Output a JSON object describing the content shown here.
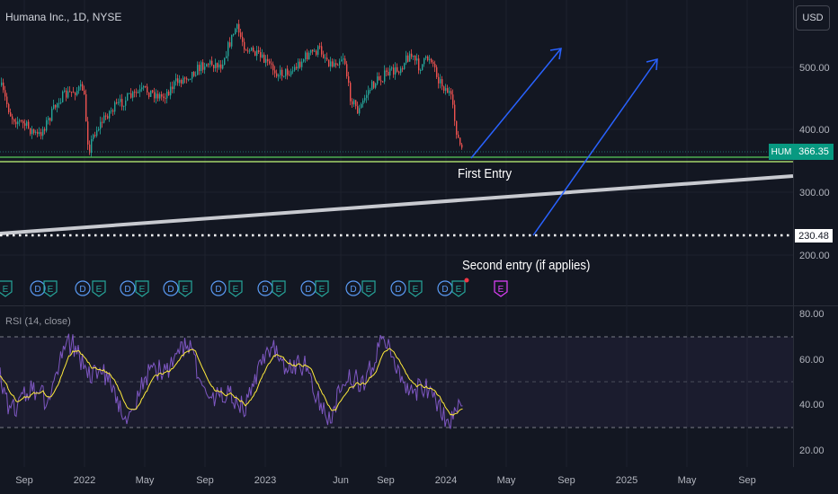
{
  "header": {
    "title": "Humana Inc., 1D, NYSE",
    "currency_button": "USD"
  },
  "price_axis": {
    "ticks": [
      "500.00",
      "400.00",
      "300.00",
      "200.00"
    ],
    "current_symbol": "HUM",
    "current_price": "366.35",
    "level_label": "230.48"
  },
  "rsi": {
    "label": "RSI (14, close)",
    "ticks": [
      "80.00",
      "60.00",
      "40.00",
      "20.00"
    ]
  },
  "time_axis": {
    "ticks": [
      "Sep",
      "2022",
      "May",
      "Sep",
      "2023",
      "Jun",
      "Sep",
      "2024",
      "May",
      "Sep",
      "2025",
      "May",
      "Sep"
    ]
  },
  "annotations": {
    "first_entry": "First Entry",
    "second_entry": "Second entry (if applies)"
  },
  "events": {
    "dividend_letter": "D",
    "earnings_letter": "E"
  },
  "colors": {
    "background": "#131722",
    "up_candle": "#26a69a",
    "down_candle": "#ef5350",
    "rsi_line": "#7e57c2",
    "rsi_ma": "#ffeb3b",
    "arrow": "#2962ff",
    "trendline": "#d1d4dc",
    "support_line": "#4caf50"
  }
}
